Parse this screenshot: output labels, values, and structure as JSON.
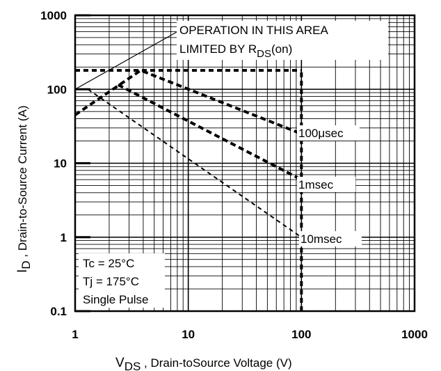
{
  "chart_data": {
    "type": "line",
    "title": "",
    "xscale": "log",
    "yscale": "log",
    "xlim": [
      1,
      1000
    ],
    "ylim": [
      0.1,
      1000
    ],
    "x_tick_labels": [
      "1",
      "10",
      "100",
      "1000"
    ],
    "y_tick_labels": [
      "1000",
      "100",
      "10",
      "1",
      "0.1"
    ],
    "xlabel": {
      "main": "V",
      "sub": "DS",
      "rest": " , Drain-toSource Voltage (V)"
    },
    "ylabel": {
      "main": "I",
      "sub": "D",
      "rest": " , Drain-to-Source Current (A)"
    },
    "grid": true,
    "annotations": {
      "rds_line1": "OPERATION IN THIS AREA",
      "rds_line2_main": "LIMITED BY R",
      "rds_line2_sub": "DS",
      "rds_line2_tail": "(on)",
      "conditions": [
        "Tc = 25°C",
        "Tj = 175°C",
        "Single Pulse"
      ]
    },
    "series": [
      {
        "name": "100μsec",
        "x": [
          1,
          3.8,
          100
        ],
        "y": [
          45,
          180,
          25
        ]
      },
      {
        "name": "1msec",
        "x": [
          2.4,
          100
        ],
        "y": [
          115,
          6
        ]
      },
      {
        "name": "10msec",
        "x": [
          1.3,
          100
        ],
        "y": [
          100,
          1
        ]
      }
    ],
    "rds_on_line": {
      "x": [
        1,
        3.8
      ],
      "y": [
        100,
        180
      ]
    },
    "current_limit": {
      "x": [
        1,
        100
      ],
      "y": 180
    },
    "voltage_limit": {
      "x": 100,
      "y": [
        0.1,
        180
      ]
    }
  }
}
